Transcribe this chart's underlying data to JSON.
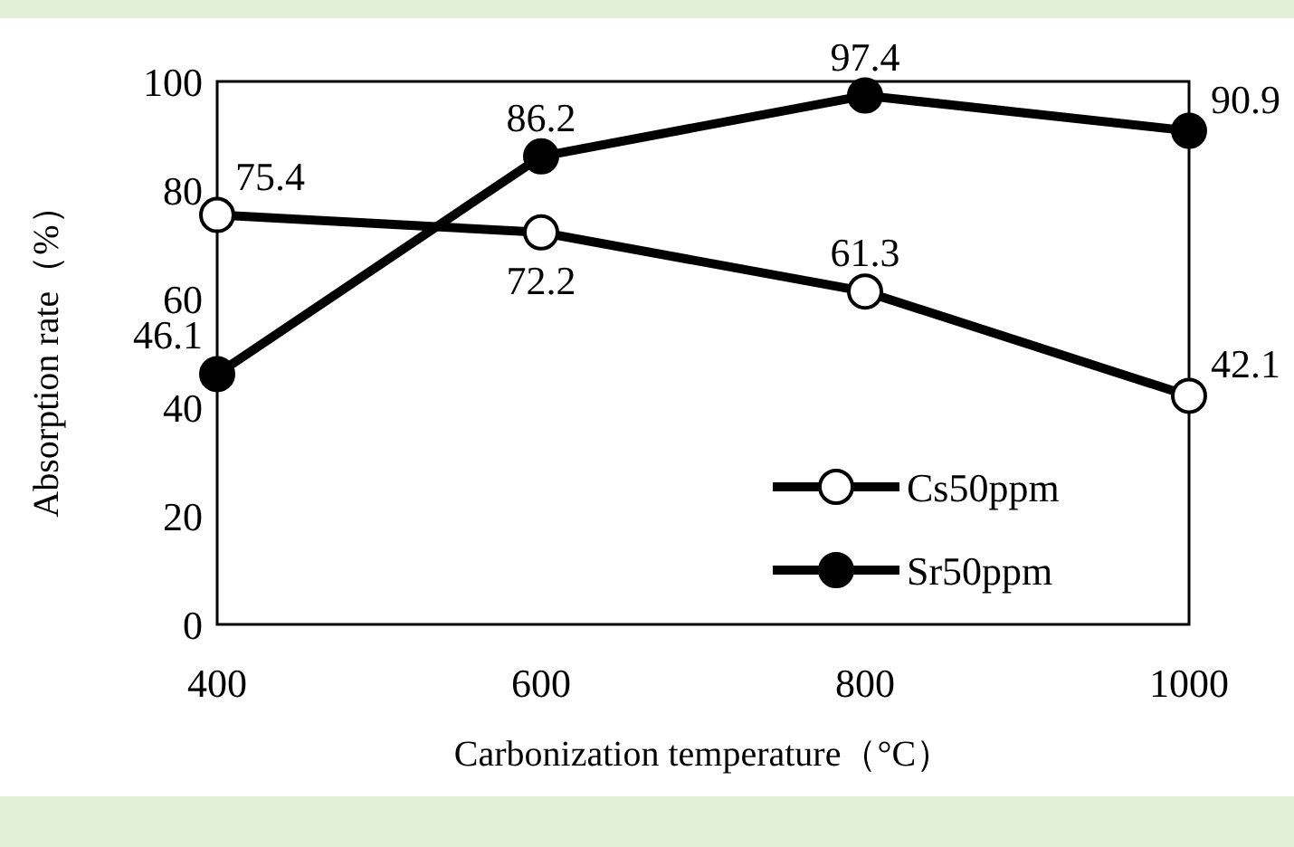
{
  "chart_data": {
    "type": "line",
    "xlabel": "Carbonization temperature（°C）",
    "ylabel": "Absorption rate（%）",
    "x": [
      400,
      600,
      800,
      1000
    ],
    "series": [
      {
        "name": "Cs50ppm",
        "color": "#000000",
        "values": [
          75.4,
          72.2,
          61.3,
          42.1
        ]
      },
      {
        "name": "Sr50ppm",
        "color": "#000000",
        "values": [
          46.1,
          86.2,
          97.4,
          90.9
        ]
      }
    ],
    "xlim": [
      400,
      1000
    ],
    "xticks": [
      400,
      600,
      800,
      1000
    ],
    "ylim": [
      0,
      100
    ],
    "yticks": [
      0,
      20,
      40,
      60,
      80,
      100
    ],
    "marker": "circle",
    "line_style": "solid",
    "data_labels": true,
    "legend": "bottom right",
    "grid": false
  }
}
